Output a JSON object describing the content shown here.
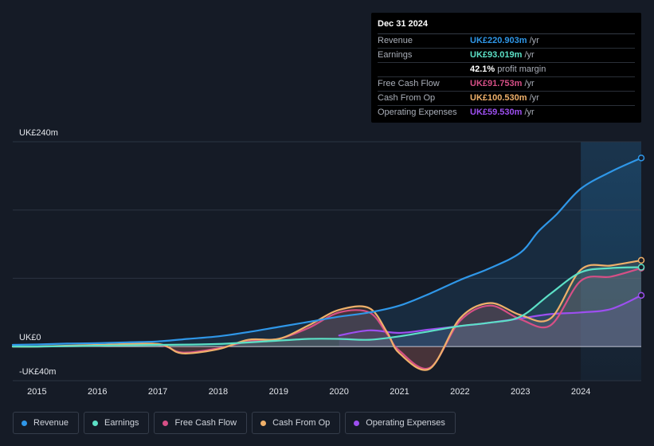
{
  "tooltip": {
    "date": "Dec 31 2024",
    "rows": [
      {
        "label": "Revenue",
        "value": "UK£220.903m",
        "unit": "/yr",
        "color": "#2f97e8"
      },
      {
        "label": "Earnings",
        "value": "UK£93.019m",
        "unit": "/yr",
        "color": "#5ce0c6"
      },
      {
        "label": "",
        "value": "42.1%",
        "unit": "profit margin",
        "color": "#ffffff"
      },
      {
        "label": "Free Cash Flow",
        "value": "UK£91.753m",
        "unit": "/yr",
        "color": "#d64f86"
      },
      {
        "label": "Cash From Op",
        "value": "UK£100.530m",
        "unit": "/yr",
        "color": "#efb06a"
      },
      {
        "label": "Operating Expenses",
        "value": "UK£59.530m",
        "unit": "/yr",
        "color": "#9d4ff0"
      }
    ]
  },
  "axis": {
    "y_top_label": "UK£240m",
    "y_zero_label": "UK£0",
    "y_bottom_label": "-UK£40m"
  },
  "legend": [
    {
      "label": "Revenue",
      "color": "#2f97e8"
    },
    {
      "label": "Earnings",
      "color": "#5ce0c6"
    },
    {
      "label": "Free Cash Flow",
      "color": "#d64f86"
    },
    {
      "label": "Cash From Op",
      "color": "#efb06a"
    },
    {
      "label": "Operating Expenses",
      "color": "#9d4ff0"
    }
  ],
  "chart_data": {
    "type": "line",
    "title": "",
    "xlabel": "",
    "ylabel": "",
    "ylim": [
      -40,
      240
    ],
    "xlim": [
      2014.6,
      2025.0
    ],
    "highlight_start": 2024.0,
    "x_ticks": [
      "2015",
      "2016",
      "2017",
      "2018",
      "2019",
      "2020",
      "2021",
      "2022",
      "2023",
      "2024"
    ],
    "series": [
      {
        "name": "Revenue",
        "color": "#2f97e8",
        "points": [
          [
            2014.6,
            2
          ],
          [
            2015,
            2.5
          ],
          [
            2015.5,
            3.5
          ],
          [
            2016,
            4
          ],
          [
            2016.5,
            5
          ],
          [
            2017,
            6
          ],
          [
            2017.5,
            9
          ],
          [
            2018,
            12
          ],
          [
            2018.5,
            17
          ],
          [
            2019,
            23
          ],
          [
            2019.5,
            29
          ],
          [
            2020,
            35
          ],
          [
            2020.5,
            40
          ],
          [
            2021,
            48
          ],
          [
            2021.5,
            62
          ],
          [
            2022,
            78
          ],
          [
            2022.5,
            92
          ],
          [
            2023,
            110
          ],
          [
            2023.3,
            135
          ],
          [
            2023.6,
            155
          ],
          [
            2024,
            185
          ],
          [
            2024.5,
            205
          ],
          [
            2025,
            221
          ]
        ]
      },
      {
        "name": "Earnings",
        "color": "#5ce0c6",
        "points": [
          [
            2014.6,
            0
          ],
          [
            2015,
            0
          ],
          [
            2016,
            1
          ],
          [
            2017,
            2
          ],
          [
            2018,
            3
          ],
          [
            2019,
            7
          ],
          [
            2019.5,
            9
          ],
          [
            2020,
            9
          ],
          [
            2020.5,
            8
          ],
          [
            2021,
            12
          ],
          [
            2021.5,
            18
          ],
          [
            2022,
            24
          ],
          [
            2022.5,
            28
          ],
          [
            2023,
            35
          ],
          [
            2023.5,
            62
          ],
          [
            2024,
            87
          ],
          [
            2024.5,
            92
          ],
          [
            2025,
            93
          ]
        ]
      },
      {
        "name": "Free Cash Flow",
        "color": "#d64f86",
        "points": [
          [
            2014.6,
            0
          ],
          [
            2015,
            0
          ],
          [
            2016,
            1
          ],
          [
            2017,
            2
          ],
          [
            2017.4,
            -7
          ],
          [
            2018,
            -2
          ],
          [
            2018.5,
            6
          ],
          [
            2019,
            9
          ],
          [
            2019.5,
            22
          ],
          [
            2020,
            40
          ],
          [
            2020.5,
            40
          ],
          [
            2020.8,
            14
          ],
          [
            2021,
            -5
          ],
          [
            2021.5,
            -25
          ],
          [
            2022,
            30
          ],
          [
            2022.5,
            48
          ],
          [
            2023,
            32
          ],
          [
            2023.5,
            25
          ],
          [
            2024,
            77
          ],
          [
            2024.5,
            82
          ],
          [
            2025,
            92
          ]
        ]
      },
      {
        "name": "Cash From Op",
        "color": "#efb06a",
        "points": [
          [
            2014.6,
            0
          ],
          [
            2015,
            0
          ],
          [
            2016,
            2
          ],
          [
            2017,
            3
          ],
          [
            2017.4,
            -8
          ],
          [
            2018,
            -3
          ],
          [
            2018.5,
            8
          ],
          [
            2019,
            9
          ],
          [
            2019.5,
            25
          ],
          [
            2020,
            43
          ],
          [
            2020.5,
            45
          ],
          [
            2020.8,
            16
          ],
          [
            2021,
            -8
          ],
          [
            2021.5,
            -26
          ],
          [
            2022,
            33
          ],
          [
            2022.5,
            51
          ],
          [
            2023,
            37
          ],
          [
            2023.5,
            33
          ],
          [
            2024,
            90
          ],
          [
            2024.5,
            95
          ],
          [
            2025,
            101
          ]
        ]
      },
      {
        "name": "Operating Expenses",
        "color": "#9d4ff0",
        "points": [
          [
            2020,
            13
          ],
          [
            2020.5,
            19
          ],
          [
            2021,
            16
          ],
          [
            2021.5,
            20
          ],
          [
            2022,
            24
          ],
          [
            2022.5,
            28
          ],
          [
            2023,
            33
          ],
          [
            2023.5,
            38
          ],
          [
            2024,
            40
          ],
          [
            2024.5,
            44
          ],
          [
            2025,
            60
          ]
        ]
      }
    ]
  }
}
